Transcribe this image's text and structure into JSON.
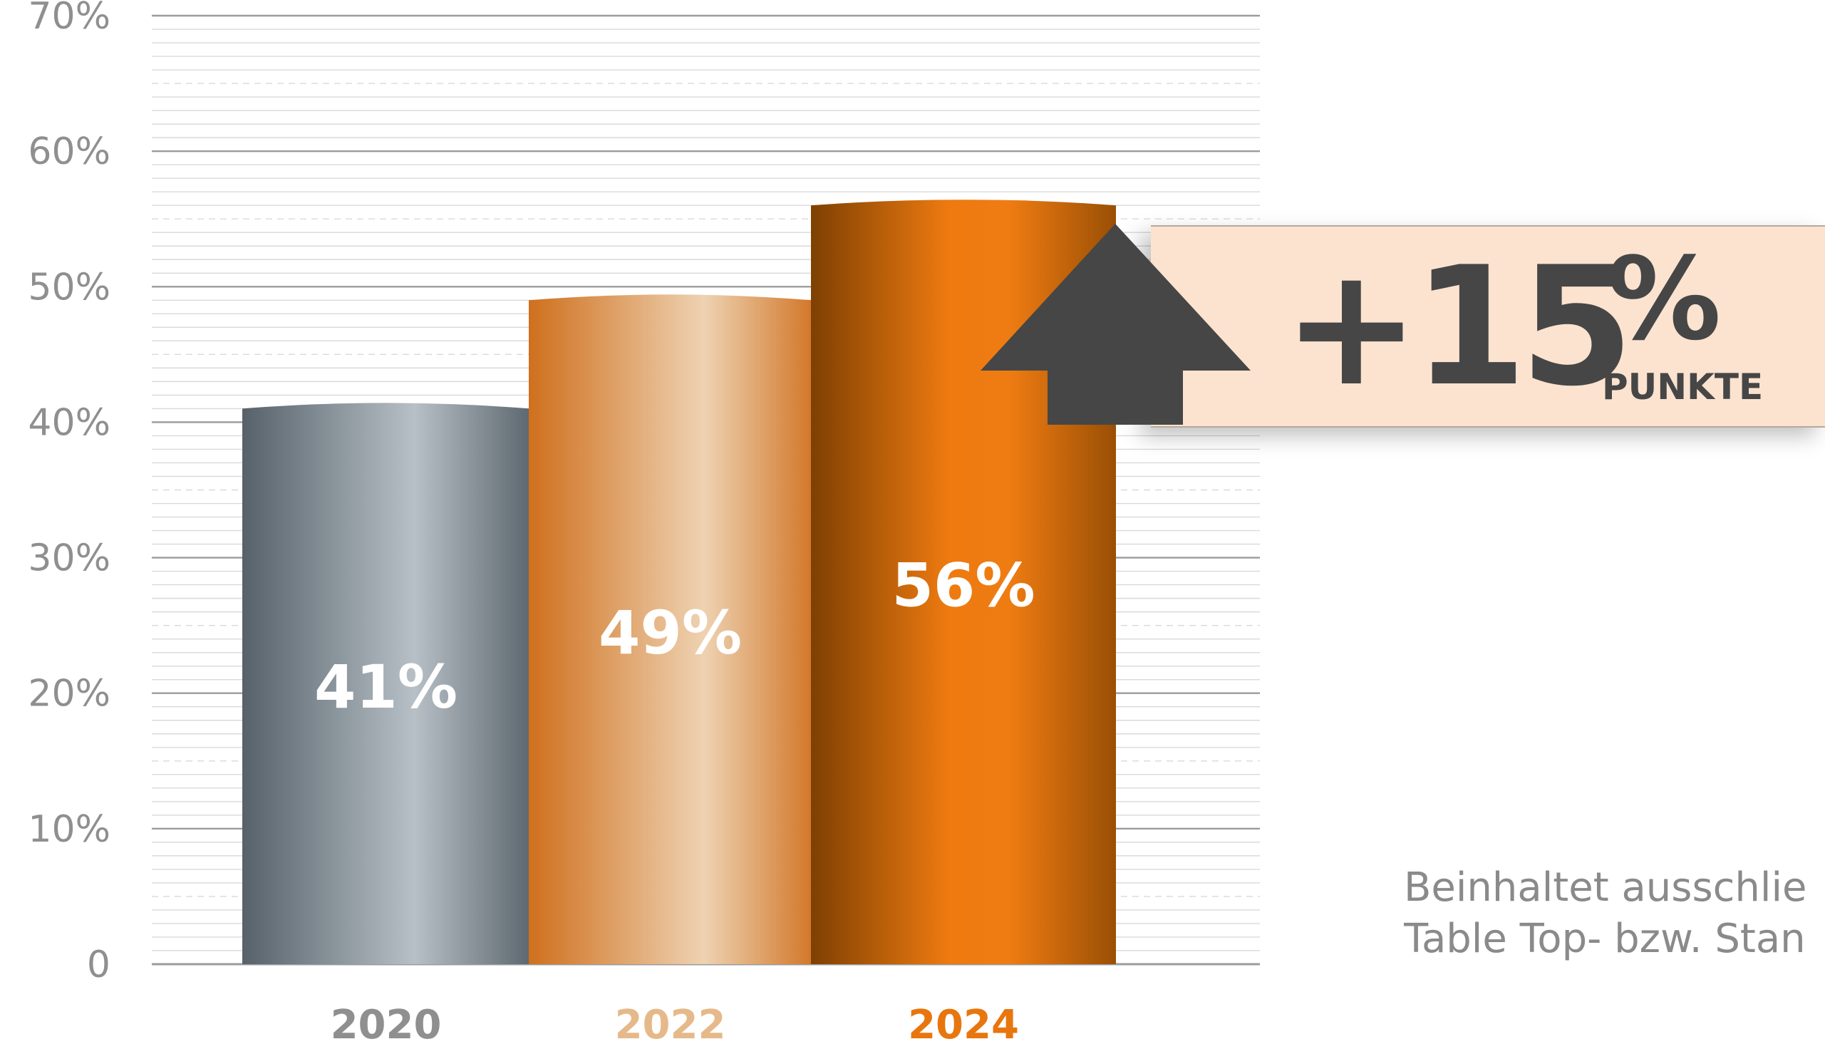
{
  "chart_data": {
    "type": "bar",
    "categories": [
      "2020",
      "2022",
      "2024"
    ],
    "values": [
      41,
      49,
      56
    ],
    "value_labels": [
      "41%",
      "49%",
      "56%"
    ],
    "ylim": [
      0,
      70
    ],
    "yticks": [
      0,
      10,
      20,
      30,
      40,
      50,
      60,
      70
    ],
    "ytick_labels": [
      "0",
      "10%",
      "20%",
      "30%",
      "40%",
      "50%",
      "60%",
      "70%"
    ],
    "grid": true,
    "colors": [
      "#5f6a72",
      "#d98a40",
      "#ef7c12"
    ],
    "category_label_colors": [
      "#8f8f8f",
      "#e6b98a",
      "#e8760e"
    ]
  },
  "callout": {
    "value": "+15",
    "percent": "%",
    "unit": "PUNKTE",
    "arrow_icon": "up-arrow-icon",
    "arrow_color": "#464646",
    "background": "#fbe3d0"
  },
  "note": {
    "line1": "Beinhaltet ausschlie",
    "line2": "Table Top- bzw. Stan"
  }
}
